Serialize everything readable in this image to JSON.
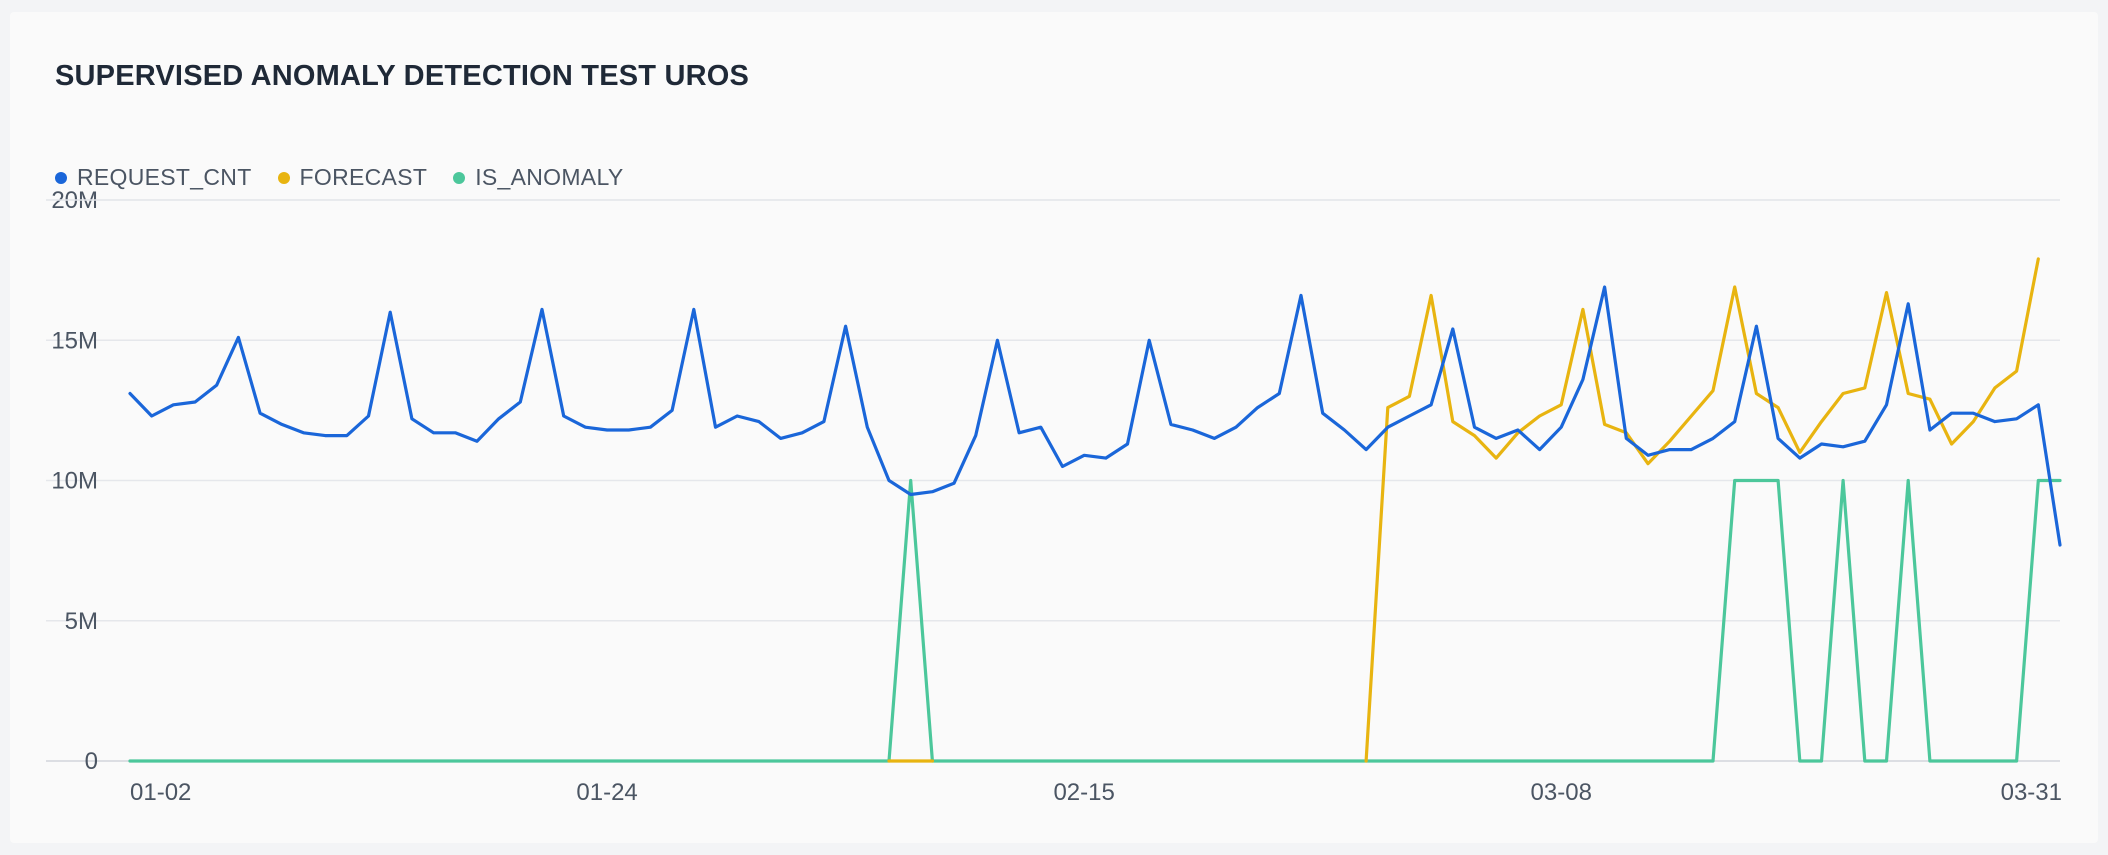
{
  "chart_data": {
    "type": "line",
    "title": "SUPERVISED ANOMALY DETECTION TEST UROS",
    "legend_position": "top-left",
    "grid": true,
    "ylim": [
      0,
      20000000
    ],
    "y_ticks": [
      {
        "value": 0,
        "label": "0"
      },
      {
        "value": 5000000,
        "label": "5M"
      },
      {
        "value": 10000000,
        "label": "10M"
      },
      {
        "value": 15000000,
        "label": "15M"
      },
      {
        "value": 20000000,
        "label": "20M"
      }
    ],
    "x_ticks": [
      {
        "index": 0,
        "label": "01-02"
      },
      {
        "index": 22,
        "label": "01-24"
      },
      {
        "index": 44,
        "label": "02-15"
      },
      {
        "index": 66,
        "label": "03-08"
      },
      {
        "index": 89,
        "label": "03-31"
      }
    ],
    "x_start": "2024-01-02",
    "x_end": "2024-03-31",
    "series": [
      {
        "name": "REQUEST_CNT",
        "color": "#1a66d9",
        "values": [
          13.1,
          12.3,
          12.7,
          12.8,
          13.4,
          15.1,
          12.4,
          12.0,
          11.7,
          11.6,
          11.6,
          12.3,
          16.0,
          12.2,
          11.7,
          11.7,
          11.4,
          12.2,
          12.8,
          16.1,
          12.3,
          11.9,
          11.8,
          11.8,
          11.9,
          12.5,
          16.1,
          11.9,
          12.3,
          12.1,
          11.5,
          11.7,
          12.1,
          15.5,
          11.9,
          10.0,
          9.5,
          9.6,
          9.9,
          11.6,
          15.0,
          11.7,
          11.9,
          10.5,
          10.9,
          10.8,
          11.3,
          15.0,
          12.0,
          11.8,
          11.5,
          11.9,
          12.6,
          13.1,
          16.6,
          12.4,
          11.8,
          11.1,
          11.9,
          12.3,
          12.7,
          15.4,
          11.9,
          11.5,
          11.8,
          11.1,
          11.9,
          13.6,
          16.9,
          11.5,
          10.9,
          11.1,
          11.1,
          11.5,
          12.1,
          15.5,
          11.5,
          10.8,
          11.3,
          11.2,
          11.4,
          12.7,
          16.3,
          11.8,
          12.4,
          12.4,
          12.1,
          12.2,
          12.7,
          7.7
        ],
        "gaps_before_index": 0
      },
      {
        "name": "FORECAST",
        "color": "#e8b410",
        "values": [
          null,
          null,
          null,
          null,
          null,
          null,
          null,
          null,
          null,
          null,
          null,
          null,
          null,
          null,
          null,
          null,
          null,
          null,
          null,
          null,
          null,
          null,
          null,
          null,
          null,
          null,
          null,
          null,
          null,
          null,
          null,
          null,
          null,
          null,
          null,
          0,
          0,
          0,
          null,
          null,
          null,
          null,
          null,
          null,
          null,
          null,
          null,
          null,
          null,
          null,
          null,
          null,
          null,
          null,
          null,
          null,
          null,
          0,
          12.6,
          13.0,
          16.6,
          12.1,
          11.6,
          10.8,
          11.7,
          12.3,
          12.7,
          16.1,
          12.0,
          11.7,
          10.6,
          11.4,
          12.3,
          13.2,
          16.9,
          13.1,
          12.6,
          11.0,
          12.1,
          13.1,
          13.3,
          16.7,
          13.1,
          12.9,
          11.3,
          12.1,
          13.3,
          13.9,
          17.9
        ],
        "pad_last": true
      },
      {
        "name": "IS_ANOMALY",
        "color": "#4cc79b",
        "values": [
          0,
          0,
          0,
          0,
          0,
          0,
          0,
          0,
          0,
          0,
          0,
          0,
          0,
          0,
          0,
          0,
          0,
          0,
          0,
          0,
          0,
          0,
          0,
          0,
          0,
          0,
          0,
          0,
          0,
          0,
          0,
          0,
          0,
          0,
          0,
          0,
          10,
          0,
          0,
          0,
          0,
          0,
          0,
          0,
          0,
          0,
          0,
          0,
          0,
          0,
          0,
          0,
          0,
          0,
          0,
          0,
          0,
          0,
          0,
          0,
          0,
          0,
          0,
          0,
          0,
          0,
          0,
          0,
          0,
          0,
          0,
          0,
          0,
          0,
          10,
          10,
          10,
          0,
          0,
          10,
          0,
          0,
          10,
          0,
          0,
          0,
          0,
          0,
          10,
          10
        ],
        "unit_scale": 1000000
      }
    ]
  }
}
